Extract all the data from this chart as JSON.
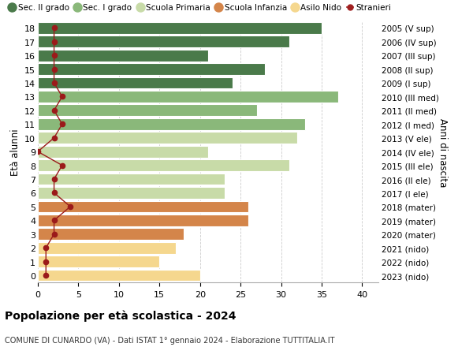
{
  "ages": [
    0,
    1,
    2,
    3,
    4,
    5,
    6,
    7,
    8,
    9,
    10,
    11,
    12,
    13,
    14,
    15,
    16,
    17,
    18
  ],
  "right_labels": [
    "2023 (nido)",
    "2022 (nido)",
    "2021 (nido)",
    "2020 (mater)",
    "2019 (mater)",
    "2018 (mater)",
    "2017 (I ele)",
    "2016 (II ele)",
    "2015 (III ele)",
    "2014 (IV ele)",
    "2013 (V ele)",
    "2012 (I med)",
    "2011 (II med)",
    "2010 (III med)",
    "2009 (I sup)",
    "2008 (II sup)",
    "2007 (III sup)",
    "2006 (IV sup)",
    "2005 (V sup)"
  ],
  "bar_values": [
    20,
    15,
    17,
    18,
    26,
    26,
    23,
    23,
    31,
    21,
    32,
    33,
    27,
    37,
    24,
    28,
    21,
    31,
    35
  ],
  "stranieri": [
    1,
    1,
    1,
    2,
    2,
    4,
    2,
    2,
    3,
    0,
    2,
    3,
    2,
    3,
    2,
    2,
    2,
    2,
    2
  ],
  "bar_colors": [
    "#f5d78e",
    "#f5d78e",
    "#f5d78e",
    "#d4854a",
    "#d4854a",
    "#d4854a",
    "#c8dba8",
    "#c8dba8",
    "#c8dba8",
    "#c8dba8",
    "#c8dba8",
    "#8ab87a",
    "#8ab87a",
    "#8ab87a",
    "#4a7a4a",
    "#4a7a4a",
    "#4a7a4a",
    "#4a7a4a",
    "#4a7a4a"
  ],
  "legend_labels": [
    "Sec. II grado",
    "Sec. I grado",
    "Scuola Primaria",
    "Scuola Infanzia",
    "Asilo Nido",
    "Stranieri"
  ],
  "legend_colors": [
    "#4a7a4a",
    "#8ab87a",
    "#c8dba8",
    "#d4854a",
    "#f5d78e",
    "#a02020"
  ],
  "title": "Popolazione per età scolastica - 2024",
  "subtitle": "COMUNE DI CUNARDO (VA) - Dati ISTAT 1° gennaio 2024 - Elaborazione TUTTITALIA.IT",
  "ylabel": "Età alunni",
  "right_ylabel": "Anni di nascita",
  "xlim": [
    0,
    42
  ],
  "ylim": [
    -0.5,
    18.5
  ],
  "xticks": [
    0,
    5,
    10,
    15,
    20,
    25,
    30,
    35,
    40
  ],
  "background_color": "#ffffff",
  "bar_height": 0.85,
  "grid_color": "#cccccc"
}
